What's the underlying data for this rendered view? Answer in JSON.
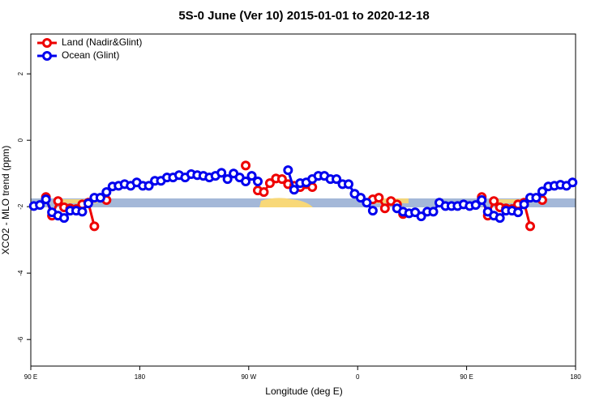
{
  "chart_data": {
    "type": "line",
    "title": "5S-0 June (Ver 10)   2015-01-01 to 2020-12-18",
    "x_label": "Longitude (deg E)",
    "y_label": "XCO2 - MLO trend (ppm)",
    "xlim": [
      90,
      540
    ],
    "ylim": [
      -6.8,
      3.2
    ],
    "xticks": [
      {
        "value": 90,
        "label": "90 E"
      },
      180,
      {
        "value": 270,
        "label": "90 W"
      },
      {
        "value": 360,
        "label": "0"
      },
      {
        "value": 450,
        "label": "90 E"
      },
      {
        "value": 540,
        "label": "180"
      }
    ],
    "yticks": [
      2,
      0,
      -2,
      -4,
      -6
    ],
    "legend": "top-left",
    "x": [
      92.5,
      97.5,
      102.5,
      107.5,
      112.5,
      117.5,
      122.5,
      127.5,
      132.5,
      137.5,
      142.5,
      147.5,
      152.5,
      157.5,
      162.5,
      167.5,
      172.5,
      177.5,
      182.5,
      187.5,
      192.5,
      197.5,
      202.5,
      207.5,
      212.5,
      217.5,
      222.5,
      227.5,
      232.5,
      237.5,
      242.5,
      247.5,
      252.5,
      257.5,
      262.5,
      267.5,
      272.5,
      277.5,
      282.5,
      287.5,
      292.5,
      297.5,
      302.5,
      307.5,
      312.5,
      317.5,
      322.5,
      327.5,
      332.5,
      337.5,
      342.5,
      347.5,
      352.5,
      357.5,
      362.5,
      367.5,
      372.5,
      377.5,
      382.5,
      387.5,
      392.5,
      397.5,
      402.5,
      407.5,
      412.5,
      417.5,
      422.5,
      427.5,
      432.5,
      437.5,
      442.5,
      447.5,
      452.5,
      457.5,
      462.5,
      467.5,
      472.5,
      477.5,
      482.5,
      487.5,
      492.5,
      497.5,
      502.5,
      507.5,
      512.5,
      517.5,
      522.5,
      527.5,
      532.5,
      537.5
    ],
    "series": [
      {
        "name": "Land (Nadir&Glint)",
        "color": "#ee0000",
        "values": [
          null,
          null,
          -1.71,
          -2.27,
          -1.83,
          -2.02,
          -2.05,
          -2.07,
          -1.93,
          -1.88,
          -2.59,
          null,
          -1.8,
          null,
          null,
          null,
          null,
          null,
          null,
          null,
          null,
          null,
          null,
          null,
          null,
          null,
          null,
          null,
          null,
          null,
          null,
          null,
          null,
          null,
          null,
          -0.76,
          null,
          -1.51,
          -1.56,
          -1.29,
          -1.15,
          -1.17,
          -1.32,
          -1.37,
          -1.41,
          -1.32,
          -1.41,
          null,
          null,
          null,
          null,
          null,
          null,
          null,
          null,
          null,
          -1.78,
          -1.73,
          -2.05,
          -1.83,
          -1.93,
          -2.22,
          null,
          null,
          null,
          null,
          null,
          null,
          null,
          null,
          null,
          null,
          null,
          null,
          -1.71,
          -2.27,
          -1.83,
          -2.02,
          -2.05,
          -2.07,
          -1.93,
          -1.88,
          -2.59,
          null,
          -1.8,
          null,
          null,
          null,
          null,
          null
        ]
      },
      {
        "name": "Ocean (Glint)",
        "color": "#0000ee",
        "values": [
          -1.98,
          -1.95,
          -1.78,
          -2.17,
          -2.27,
          -2.34,
          -2.12,
          -2.12,
          -2.15,
          -1.9,
          -1.73,
          -1.73,
          -1.56,
          -1.39,
          -1.37,
          -1.32,
          -1.37,
          -1.27,
          -1.37,
          -1.37,
          -1.22,
          -1.22,
          -1.12,
          -1.12,
          -1.05,
          -1.12,
          -1.02,
          -1.05,
          -1.07,
          -1.12,
          -1.07,
          -0.98,
          -1.17,
          -1.0,
          -1.12,
          -1.24,
          -1.07,
          -1.24,
          null,
          null,
          null,
          null,
          -0.9,
          -1.49,
          -1.29,
          -1.27,
          -1.17,
          -1.07,
          -1.07,
          -1.17,
          -1.17,
          -1.32,
          -1.32,
          -1.61,
          -1.73,
          -1.88,
          -2.12,
          null,
          null,
          null,
          -2.05,
          -2.15,
          -2.2,
          -2.17,
          -2.29,
          -2.15,
          -2.15,
          -1.88,
          -1.98,
          -1.98,
          -1.98,
          -1.93,
          -1.98,
          -1.95,
          -1.8,
          -2.15,
          -2.27,
          -2.34,
          -2.12,
          -2.12,
          -2.17,
          -1.93,
          -1.73,
          -1.73,
          -1.54,
          -1.39,
          -1.37,
          -1.34,
          -1.37,
          -1.27
        ]
      }
    ]
  }
}
